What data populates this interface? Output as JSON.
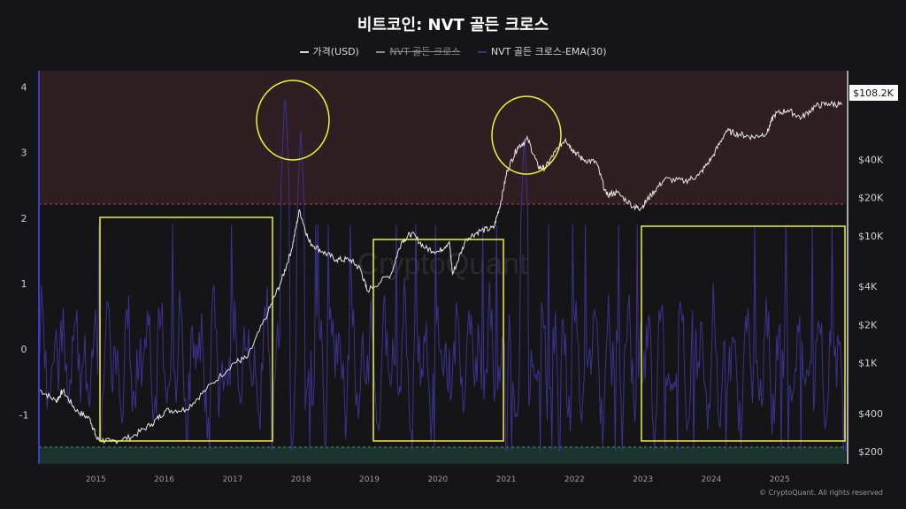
{
  "title": "비트코인: NVT 골든 크로스",
  "legend": [
    {
      "label": "가격(USD)",
      "color": "#d9d9d9",
      "struck": false
    },
    {
      "label": "NVT 골든 크로스",
      "color": "#8a8a8a",
      "struck": true
    },
    {
      "label": "NVT 골든 크로스-EMA(30)",
      "color": "#3b2f8f",
      "struck": false
    }
  ],
  "watermark": "CryptoQuant",
  "credit": "© CryptoQuant. All rights reserved",
  "price_label": "$108.2K",
  "colors": {
    "price": "#e6e6e6",
    "nvt_ema": "#3d3190",
    "top_band": "#3a2326",
    "bottom_band": "#1d3a34",
    "highlight": "#f2f23a"
  },
  "chart_data": {
    "type": "line",
    "x_range": [
      2014.15,
      2025.95
    ],
    "x_ticks": [
      "2015",
      "2016",
      "2017",
      "2018",
      "2019",
      "2020",
      "2021",
      "2022",
      "2023",
      "2024",
      "2025"
    ],
    "y_left": {
      "range": [
        -1.75,
        4.25
      ],
      "ticks": [
        "4",
        "3",
        "2",
        "1",
        "0",
        "-1"
      ],
      "top_band_from": 2.2,
      "bottom_band_to": -1.6
    },
    "y_right": {
      "scale": "log",
      "range": [
        160,
        200000
      ],
      "ticks": [
        {
          "label": "$40K",
          "value": 40000
        },
        {
          "label": "$20K",
          "value": 20000
        },
        {
          "label": "$10K",
          "value": 10000
        },
        {
          "label": "$4K",
          "value": 4000
        },
        {
          "label": "$2K",
          "value": 2000
        },
        {
          "label": "$1K",
          "value": 1000
        },
        {
          "label": "$400",
          "value": 400
        },
        {
          "label": "$200",
          "value": 200
        }
      ]
    },
    "series": [
      {
        "name": "가격(USD)",
        "axis": "right",
        "x": [
          2014.15,
          2014.4,
          2014.5,
          2014.7,
          2014.9,
          2015.0,
          2015.2,
          2015.5,
          2015.8,
          2016.0,
          2016.3,
          2016.6,
          2017.0,
          2017.2,
          2017.5,
          2017.7,
          2017.85,
          2017.96,
          2018.1,
          2018.3,
          2018.5,
          2018.7,
          2018.85,
          2018.95,
          2019.3,
          2019.45,
          2019.6,
          2019.8,
          2020.0,
          2020.15,
          2020.2,
          2020.4,
          2020.6,
          2020.8,
          2020.9,
          2021.0,
          2021.15,
          2021.3,
          2021.45,
          2021.55,
          2021.7,
          2021.85,
          2021.95,
          2022.1,
          2022.3,
          2022.45,
          2022.6,
          2022.85,
          2022.95,
          2023.1,
          2023.3,
          2023.6,
          2023.8,
          2024.0,
          2024.2,
          2024.4,
          2024.6,
          2024.8,
          2024.9,
          2025.1,
          2025.3,
          2025.5,
          2025.7,
          2025.9
        ],
        "y": [
          620,
          500,
          600,
          420,
          360,
          250,
          240,
          260,
          330,
          420,
          430,
          620,
          1000,
          1100,
          2500,
          4500,
          8000,
          16000,
          9000,
          7500,
          6500,
          6500,
          5500,
          3700,
          5000,
          9000,
          10500,
          8000,
          7500,
          9000,
          5000,
          9500,
          11000,
          11500,
          18000,
          33000,
          50000,
          58000,
          35000,
          34000,
          46000,
          58000,
          48000,
          40000,
          38000,
          21000,
          22000,
          17000,
          16500,
          21000,
          28000,
          27000,
          30000,
          42000,
          67000,
          63000,
          60000,
          65000,
          90000,
          98000,
          85000,
          105000,
          110000,
          108200
        ]
      },
      {
        "name": "NVT 골든 크로스-EMA(30)",
        "axis": "left",
        "peaks": [
          {
            "x": 2017.75,
            "y": 4.0
          },
          {
            "x": 2017.98,
            "y": 3.4
          },
          {
            "x": 2021.25,
            "y": 3.3
          }
        ]
      }
    ]
  }
}
